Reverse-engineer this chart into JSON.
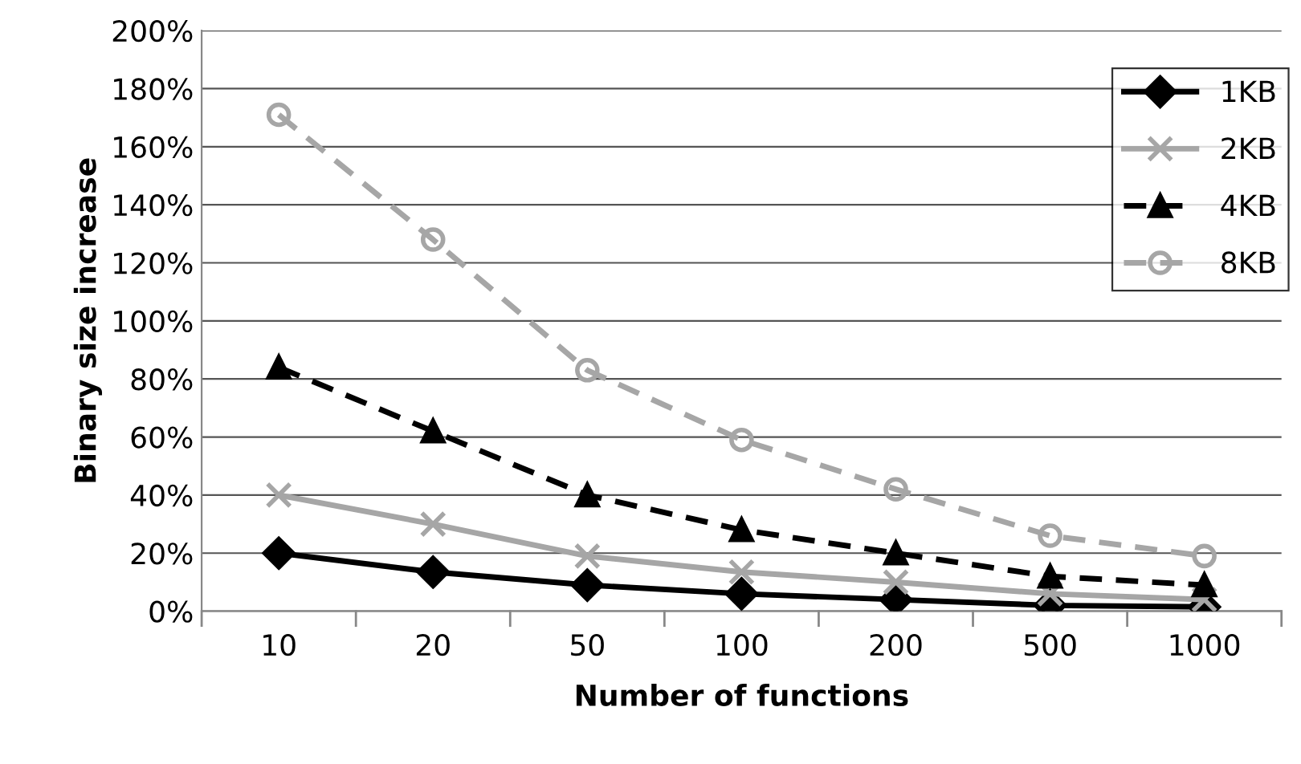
{
  "chart_data": {
    "type": "line",
    "xlabel": "Number of functions",
    "ylabel": "Binary size increase",
    "categories": [
      "10",
      "20",
      "50",
      "100",
      "200",
      "500",
      "1000"
    ],
    "series": [
      {
        "name": "1KB",
        "color": "#000000",
        "marker": "diamond",
        "line_style": "solid",
        "values": [
          20,
          13.5,
          9,
          6,
          4,
          2,
          1.5
        ]
      },
      {
        "name": "2KB",
        "color": "#a6a6a6",
        "marker": "cross",
        "line_style": "solid",
        "values": [
          40,
          30,
          19,
          13.5,
          10,
          6,
          4
        ]
      },
      {
        "name": "4KB",
        "color": "#000000",
        "marker": "triangle",
        "line_style": "dashed",
        "values": [
          84,
          62,
          40,
          28,
          20,
          12,
          9
        ]
      },
      {
        "name": "8KB",
        "color": "#a6a6a6",
        "marker": "circle",
        "line_style": "dashed",
        "values": [
          171,
          128,
          83,
          59,
          42,
          26,
          19
        ]
      }
    ],
    "ylim": [
      0,
      200
    ],
    "yticks": [
      {
        "value": 0,
        "label": "0%"
      },
      {
        "value": 20,
        "label": "20%"
      },
      {
        "value": 40,
        "label": "40%"
      },
      {
        "value": 60,
        "label": "60%"
      },
      {
        "value": 80,
        "label": "80%"
      },
      {
        "value": 100,
        "label": "100%"
      },
      {
        "value": 120,
        "label": "120%"
      },
      {
        "value": 140,
        "label": "140%"
      },
      {
        "value": 160,
        "label": "160%"
      },
      {
        "value": 180,
        "label": "180%"
      },
      {
        "value": 200,
        "label": "200%"
      }
    ],
    "grid": "y",
    "legend": "top right"
  }
}
